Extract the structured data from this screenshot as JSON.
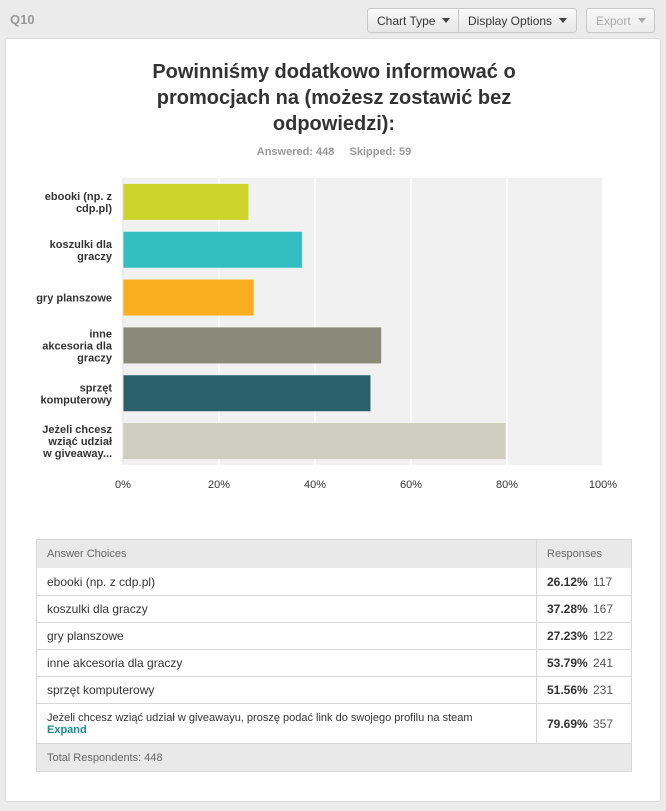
{
  "header": {
    "question_id": "Q10",
    "chart_type_label": "Chart Type",
    "display_options_label": "Display Options",
    "export_label": "Export"
  },
  "stats": {
    "answered": "Answered: 448",
    "skipped": "Skipped: 59"
  },
  "colors": [
    "#cdd42c",
    "#33bfc1",
    "#f9ae20",
    "#8a8a7a",
    "#2c5f6c",
    "#cfcdc0"
  ],
  "chart_data": {
    "type": "bar",
    "orientation": "horizontal",
    "title": "Powinniśmy dodatkowo informować o promocjach na (możesz zostawić bez odpowiedzi):",
    "categories": [
      [
        "ebooki (np. z",
        "cdp.pl)"
      ],
      [
        "koszulki dla",
        "graczy"
      ],
      [
        "gry planszowe"
      ],
      [
        "inne",
        "akcesoria dla",
        "graczy"
      ],
      [
        "sprzęt",
        "komputerowy"
      ],
      [
        "Jeżeli chcesz",
        "wziąć udział",
        "w giveaway..."
      ]
    ],
    "values": [
      26.12,
      37.28,
      27.23,
      53.79,
      51.56,
      79.69
    ],
    "xlim": [
      0,
      100
    ],
    "xticks": [
      "0%",
      "20%",
      "40%",
      "60%",
      "80%",
      "100%"
    ],
    "grid": true,
    "legend": "none"
  },
  "table": {
    "header_choices": "Answer Choices",
    "header_responses": "Responses",
    "rows": [
      {
        "choice": "ebooki (np. z cdp.pl)",
        "percent": "26.12%",
        "count": "117"
      },
      {
        "choice": "koszulki dla graczy",
        "percent": "37.28%",
        "count": "167"
      },
      {
        "choice": "gry planszowe",
        "percent": "27.23%",
        "count": "122"
      },
      {
        "choice": "inne akcesoria dla graczy",
        "percent": "53.79%",
        "count": "241"
      },
      {
        "choice": "sprzęt komputerowy",
        "percent": "51.56%",
        "count": "231"
      },
      {
        "choice": "Jeżeli chcesz wziąć udział w giveawayu, proszę podać link do swojego profilu na steam",
        "percent": "79.69%",
        "count": "357",
        "expand": "Expand"
      }
    ],
    "footer": "Total Respondents: 448"
  }
}
